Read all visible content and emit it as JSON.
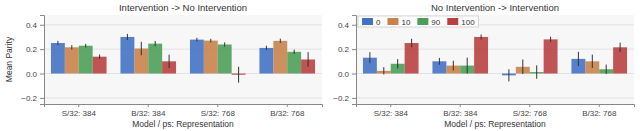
{
  "chart_data": [
    {
      "type": "bar",
      "title": "Intervention -> No Intervention",
      "xlabel": "Model / ps: Representation",
      "ylabel": "Mean Parity",
      "categories": [
        "S/32: 384",
        "B/32: 384",
        "S/32: 768",
        "B/32: 768"
      ],
      "series": [
        {
          "color": "#4472c4",
          "values": [
            0.25,
            0.3,
            0.278,
            0.21
          ],
          "errors": [
            0.018,
            0.025,
            0.015,
            0.018
          ]
        },
        {
          "color": "#c8834c",
          "values": [
            0.215,
            0.205,
            0.27,
            0.268
          ],
          "errors": [
            0.018,
            0.055,
            0.015,
            0.018
          ]
        },
        {
          "color": "#4d9e5a",
          "values": [
            0.228,
            0.245,
            0.238,
            0.178
          ],
          "errors": [
            0.015,
            0.022,
            0.018,
            0.018
          ]
        },
        {
          "color": "#b94040",
          "values": [
            0.138,
            0.1,
            -0.01,
            0.115
          ],
          "errors": [
            0.018,
            0.055,
            0.065,
            0.06
          ]
        }
      ],
      "ylim": [
        -0.25,
        0.48
      ],
      "yticks": [
        {
          "value": -0.2,
          "label": "−0.2"
        },
        {
          "value": 0.0,
          "label": "0.0"
        },
        0.2,
        0.4
      ],
      "grid": true
    },
    {
      "type": "bar",
      "title": "No Intervention -> Intervention",
      "xlabel": "Model / ps: Representation",
      "categories": [
        "S/32: 384",
        "B/32: 384",
        "S/32: 768",
        "B/32: 768"
      ],
      "series": [
        {
          "name": "0",
          "color": "#4472c4",
          "values": [
            0.13,
            0.1,
            -0.015,
            0.12
          ],
          "errors": [
            0.045,
            0.028,
            0.05,
            0.058
          ]
        },
        {
          "name": "10",
          "color": "#c8834c",
          "values": [
            0.022,
            0.065,
            0.055,
            0.1
          ],
          "errors": [
            0.03,
            0.04,
            0.06,
            0.055
          ]
        },
        {
          "name": "90",
          "color": "#4d9e5a",
          "values": [
            0.08,
            0.065,
            0.012,
            0.035
          ],
          "errors": [
            0.038,
            0.065,
            0.055,
            0.038
          ]
        },
        {
          "name": "100",
          "color": "#b94040",
          "values": [
            0.25,
            0.3,
            0.28,
            0.215
          ],
          "errors": [
            0.035,
            0.02,
            0.022,
            0.038
          ]
        }
      ],
      "ylim": [
        -0.25,
        0.48
      ],
      "yticks": [
        {
          "value": -0.2,
          "label": "−0.2"
        },
        {
          "value": 0.0,
          "label": "0.0"
        },
        0.2,
        0.4
      ],
      "grid": true,
      "legend": "upper left"
    }
  ]
}
